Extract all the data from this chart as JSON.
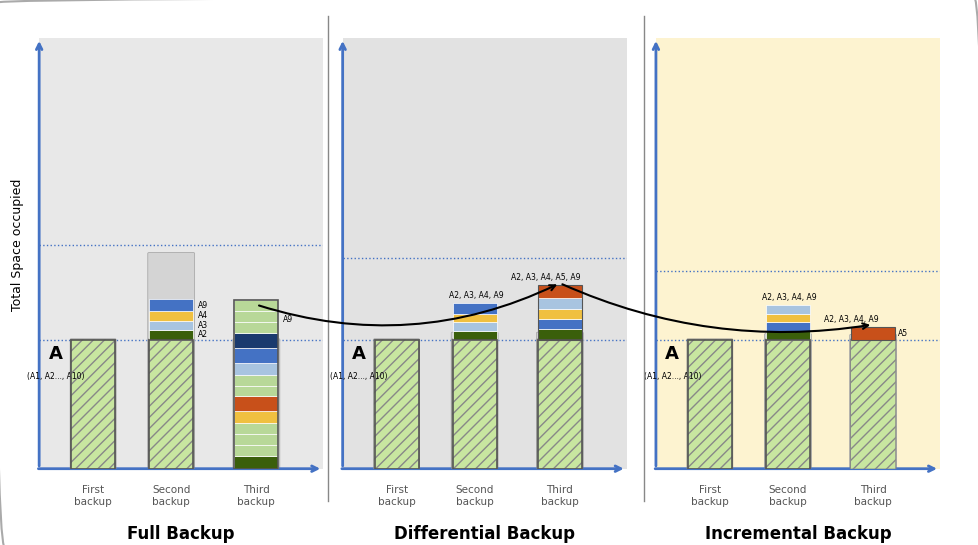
{
  "bg_full": "#e8e8e8",
  "bg_diff": "#e2e2e2",
  "bg_incr": "#fdf3d0",
  "axis_color": "#4472c4",
  "title_full": "Full Backup",
  "title_diff": "Differential Backup",
  "title_incr": "Incremental Backup",
  "ylabel": "Total Space occupied",
  "colors": {
    "green_dark": "#3a5f0b",
    "blue_light": "#a8c4e0",
    "yellow": "#f0c040",
    "orange": "#c8501a",
    "blue_mid": "#4472c4",
    "blue_deep": "#1a3a6e",
    "green_stripe": "#b8d898",
    "green_hatch_fc": "#c8e6a0"
  },
  "dotted_line_color": "#4472c4",
  "x_labels": [
    "First\nbackup",
    "Second\nbackup",
    "Third\nbackup"
  ]
}
